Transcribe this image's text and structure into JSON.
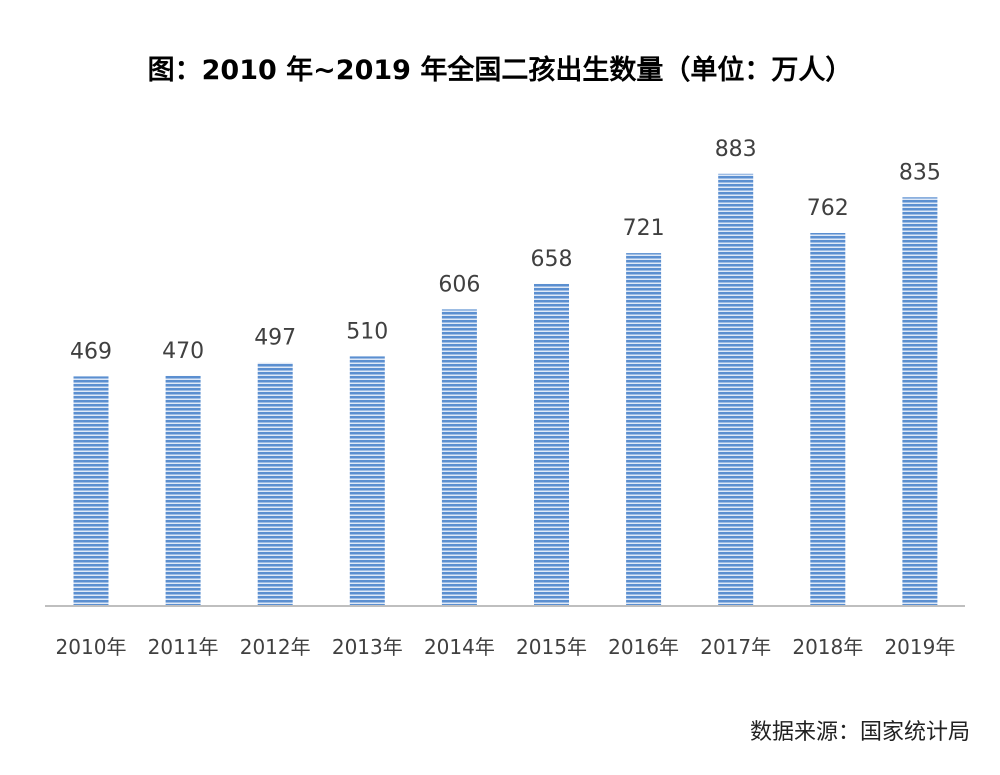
{
  "chart_data": {
    "type": "bar",
    "title": "图：2010 年~2019 年全国二孩出生数量（单位：万人）",
    "categories": [
      "2010年",
      "2011年",
      "2012年",
      "2013年",
      "2014年",
      "2015年",
      "2016年",
      "2017年",
      "2018年",
      "2019年"
    ],
    "values": [
      469,
      470,
      497,
      510,
      606,
      658,
      721,
      883,
      762,
      835
    ],
    "xlabel": "",
    "ylabel": "",
    "ylim": [
      0,
      900
    ],
    "bar_color": "#5b8fd0",
    "bar_stripe_color": "#dfe9f7",
    "axis_color": "#bfbfbf",
    "grid": false,
    "legend": "none"
  },
  "source": "数据来源：国家统计局"
}
